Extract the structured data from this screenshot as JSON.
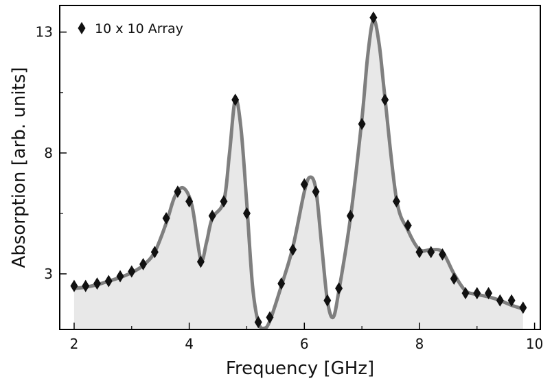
{
  "chart_data": {
    "type": "line",
    "xlabel": "Frequency [GHz]",
    "ylabel": "Absorption [arb. units]",
    "xlim": [
      1.75,
      10.1
    ],
    "ylim": [
      0.7,
      14.1
    ],
    "xticks": [
      2,
      4,
      6,
      8,
      10
    ],
    "xtick_labels": [
      "2",
      "4",
      "6",
      "8",
      "10"
    ],
    "yticks": [
      3,
      8,
      13
    ],
    "ytick_labels": [
      "3",
      "8",
      "13"
    ],
    "minor_xticks": [
      3,
      5,
      7,
      9
    ],
    "minor_yticks": [
      5.5,
      10.5
    ],
    "grid": false,
    "legend_position": "top-left",
    "fill_color": "#e8e8e8",
    "line_color": "#7f7f7f",
    "marker_color": "#111111",
    "series": [
      {
        "name": "10 x 10 Array",
        "style": "markers",
        "x": [
          2.0,
          2.2,
          2.4,
          2.6,
          2.8,
          3.0,
          3.2,
          3.4,
          3.6,
          3.8,
          4.0,
          4.2,
          4.4,
          4.6,
          4.8,
          5.0,
          5.2,
          5.4,
          5.6,
          5.8,
          6.0,
          6.2,
          6.4,
          6.6,
          6.8,
          7.0,
          7.2,
          7.4,
          7.6,
          7.8,
          8.0,
          8.2,
          8.4,
          8.6,
          8.8,
          9.0,
          9.2,
          9.4,
          9.6,
          9.8
        ],
        "values": [
          2.5,
          2.5,
          2.6,
          2.7,
          2.9,
          3.1,
          3.4,
          3.9,
          5.3,
          6.4,
          6.0,
          3.5,
          5.4,
          6.0,
          10.2,
          5.5,
          1.0,
          1.2,
          2.6,
          4.0,
          6.7,
          6.4,
          1.9,
          2.4,
          5.4,
          9.2,
          13.6,
          10.2,
          6.0,
          5.0,
          3.9,
          3.9,
          3.8,
          2.8,
          2.2,
          2.2,
          2.2,
          1.9,
          1.9,
          1.6
        ]
      },
      {
        "name": "",
        "style": "line",
        "x": [
          2.0,
          2.2,
          2.4,
          2.6,
          2.8,
          3.0,
          3.2,
          3.4,
          3.6,
          3.75,
          3.9,
          4.05,
          4.2,
          4.3,
          4.4,
          4.6,
          4.7,
          4.8,
          4.9,
          5.0,
          5.1,
          5.2,
          5.3,
          5.4,
          5.6,
          5.8,
          6.0,
          6.1,
          6.2,
          6.3,
          6.4,
          6.5,
          6.6,
          6.8,
          7.0,
          7.1,
          7.2,
          7.3,
          7.4,
          7.6,
          7.8,
          8.0,
          8.2,
          8.4,
          8.6,
          8.8,
          9.0,
          9.2,
          9.4,
          9.6,
          9.8
        ],
        "values": [
          2.4,
          2.45,
          2.55,
          2.7,
          2.85,
          3.05,
          3.35,
          3.9,
          5.1,
          6.2,
          6.55,
          5.8,
          3.6,
          4.3,
          5.3,
          6.0,
          8.0,
          10.2,
          9.0,
          5.9,
          2.5,
          1.0,
          0.75,
          1.05,
          2.5,
          4.1,
          6.4,
          7.0,
          6.5,
          4.2,
          1.9,
          1.2,
          2.3,
          5.3,
          9.4,
          12.0,
          13.5,
          12.5,
          10.3,
          6.1,
          4.8,
          4.0,
          4.0,
          3.9,
          3.0,
          2.3,
          2.15,
          2.05,
          1.9,
          1.7,
          1.55
        ]
      }
    ]
  }
}
